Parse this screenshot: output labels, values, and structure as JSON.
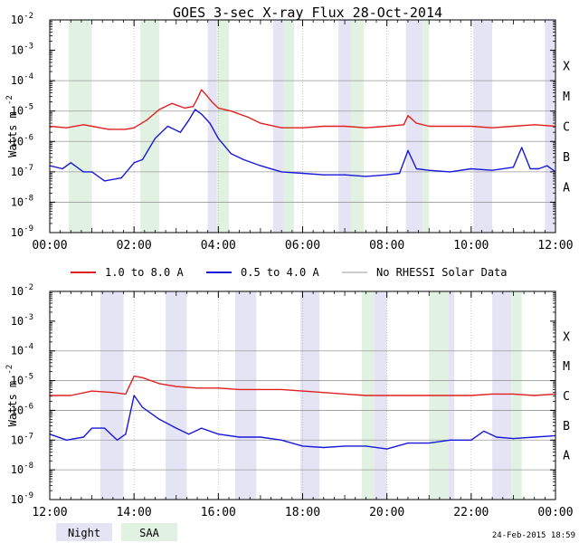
{
  "title": "GOES 3-sec X-ray Flux   28-Oct-2014",
  "ylabel_main": "Watts m",
  "ylabel_exp": "-2",
  "footer_date": "24-Feb-2015 18:59",
  "legend": [
    {
      "label": "1.0 to 8.0 A",
      "color": "#e02020"
    },
    {
      "label": "0.5 to 4.0 A",
      "color": "#1818d8"
    },
    {
      "label": "No RHESSI Solar Data",
      "color": "#999999"
    }
  ],
  "shade_legend": [
    {
      "label": "Night",
      "color": "#e4e4f4"
    },
    {
      "label": "SAA",
      "color": "#e2f2e2"
    }
  ],
  "colors": {
    "long": "#e02020",
    "short": "#1818d8",
    "nodata": "#999999",
    "grid": "#9a9a9a"
  },
  "chart_data": [
    {
      "type": "line",
      "panel": "top",
      "ylabel": "Watts m^-2",
      "yscale": "log",
      "ylim_exp": [
        -9,
        -2
      ],
      "ytick_exps": [
        "-2",
        "-3",
        "-4",
        "-5",
        "-6",
        "-7",
        "-8",
        "-9"
      ],
      "classes": [
        "X",
        "M",
        "C",
        "B",
        "A"
      ],
      "class_exps": [
        -4,
        -5,
        -6,
        -7,
        -8
      ],
      "xlim_hours": [
        0,
        12
      ],
      "xtick_labels": [
        "00:00",
        "02:00",
        "04:00",
        "06:00",
        "08:00",
        "10:00",
        "12:00"
      ],
      "night": [
        [
          3.75,
          3.95
        ],
        [
          5.3,
          5.55
        ],
        [
          6.85,
          7.15
        ],
        [
          8.45,
          8.85
        ],
        [
          10.05,
          10.5
        ],
        [
          11.75,
          12.0
        ]
      ],
      "saa": [
        [
          0.45,
          1.0
        ],
        [
          2.15,
          2.6
        ],
        [
          3.95,
          4.25
        ],
        [
          5.55,
          5.8
        ],
        [
          7.15,
          7.45
        ],
        [
          8.85,
          9.0
        ]
      ],
      "series": [
        {
          "name": "1.0 to 8.0 A",
          "hours": [
            0,
            0.4,
            0.8,
            1.0,
            1.4,
            1.8,
            2.0,
            2.3,
            2.6,
            2.9,
            3.2,
            3.4,
            3.5,
            3.6,
            3.7,
            3.85,
            4.0,
            4.3,
            4.7,
            5.0,
            5.5,
            6.0,
            6.5,
            7.0,
            7.5,
            8.0,
            8.4,
            8.5,
            8.7,
            9.0,
            9.5,
            10.0,
            10.5,
            11.0,
            11.5,
            12.0
          ],
          "log_values": [
            -5.5,
            -5.55,
            -5.45,
            -5.5,
            -5.6,
            -5.6,
            -5.55,
            -5.3,
            -4.95,
            -4.75,
            -4.9,
            -4.85,
            -4.6,
            -4.3,
            -4.45,
            -4.7,
            -4.9,
            -5.0,
            -5.2,
            -5.4,
            -5.55,
            -5.55,
            -5.5,
            -5.5,
            -5.55,
            -5.5,
            -5.45,
            -5.15,
            -5.4,
            -5.5,
            -5.5,
            -5.5,
            -5.55,
            -5.5,
            -5.45,
            -5.5
          ]
        },
        {
          "name": "0.5 to 4.0 A",
          "hours": [
            0,
            0.3,
            0.5,
            0.8,
            1.0,
            1.3,
            1.7,
            2.0,
            2.2,
            2.5,
            2.8,
            3.1,
            3.3,
            3.45,
            3.6,
            3.8,
            4.0,
            4.3,
            4.6,
            5.0,
            5.5,
            6.0,
            6.5,
            7.0,
            7.5,
            8.0,
            8.3,
            8.5,
            8.7,
            9.0,
            9.5,
            10.0,
            10.5,
            11.0,
            11.2,
            11.4,
            11.6,
            11.8,
            12.0
          ],
          "log_values": [
            -6.8,
            -6.9,
            -6.7,
            -7.0,
            -7.0,
            -7.3,
            -7.2,
            -6.7,
            -6.6,
            -5.9,
            -5.5,
            -5.7,
            -5.3,
            -4.95,
            -5.1,
            -5.4,
            -5.9,
            -6.4,
            -6.6,
            -6.8,
            -7.0,
            -7.05,
            -7.1,
            -7.1,
            -7.15,
            -7.1,
            -7.05,
            -6.3,
            -6.9,
            -6.95,
            -7.0,
            -6.9,
            -6.95,
            -6.85,
            -6.2,
            -6.9,
            -6.9,
            -6.8,
            -7.0
          ]
        }
      ]
    },
    {
      "type": "line",
      "panel": "bottom",
      "ylabel": "Watts m^-2",
      "yscale": "log",
      "ylim_exp": [
        -9,
        -2
      ],
      "ytick_exps": [
        "-2",
        "-3",
        "-4",
        "-5",
        "-6",
        "-7",
        "-8",
        "-9"
      ],
      "classes": [
        "X",
        "M",
        "C",
        "B",
        "A"
      ],
      "class_exps": [
        -4,
        -5,
        -6,
        -7,
        -8
      ],
      "xlim_hours": [
        12,
        24
      ],
      "xtick_labels": [
        "12:00",
        "14:00",
        "16:00",
        "18:00",
        "20:00",
        "22:00",
        "00:00"
      ],
      "night": [
        [
          13.2,
          13.75
        ],
        [
          14.75,
          15.25
        ],
        [
          16.4,
          16.9
        ],
        [
          17.95,
          18.4
        ],
        [
          19.7,
          20.0
        ],
        [
          21.45,
          21.6
        ],
        [
          22.5,
          22.95
        ]
      ],
      "saa": [
        [
          19.4,
          19.7
        ],
        [
          21.0,
          21.45
        ],
        [
          22.95,
          23.2
        ]
      ],
      "series": [
        {
          "name": "1.0 to 8.0 A",
          "hours": [
            12,
            12.5,
            13.0,
            13.5,
            13.8,
            14.0,
            14.2,
            14.6,
            15.0,
            15.5,
            16.0,
            16.5,
            17.0,
            17.5,
            18.0,
            18.5,
            19.0,
            19.5,
            20.0,
            20.5,
            21.0,
            21.5,
            22.0,
            22.5,
            23.0,
            23.5,
            24.0
          ],
          "log_values": [
            -5.5,
            -5.5,
            -5.35,
            -5.4,
            -5.45,
            -4.85,
            -4.9,
            -5.1,
            -5.2,
            -5.25,
            -5.25,
            -5.3,
            -5.3,
            -5.3,
            -5.35,
            -5.4,
            -5.45,
            -5.5,
            -5.5,
            -5.5,
            -5.5,
            -5.5,
            -5.5,
            -5.45,
            -5.45,
            -5.5,
            -5.45
          ]
        },
        {
          "name": "0.5 to 4.0 A",
          "hours": [
            12,
            12.4,
            12.8,
            13.0,
            13.3,
            13.6,
            13.8,
            14.0,
            14.2,
            14.6,
            15.0,
            15.3,
            15.6,
            16.0,
            16.5,
            17.0,
            17.5,
            18.0,
            18.5,
            19.0,
            19.5,
            20.0,
            20.5,
            21.0,
            21.5,
            22.0,
            22.3,
            22.6,
            23.0,
            23.5,
            24.0
          ],
          "log_values": [
            -6.8,
            -7.0,
            -6.9,
            -6.6,
            -6.6,
            -7.0,
            -6.8,
            -5.5,
            -5.9,
            -6.3,
            -6.6,
            -6.8,
            -6.6,
            -6.8,
            -6.9,
            -6.9,
            -7.0,
            -7.2,
            -7.25,
            -7.2,
            -7.2,
            -7.3,
            -7.1,
            -7.1,
            -7.0,
            -7.0,
            -6.7,
            -6.9,
            -6.95,
            -6.9,
            -6.85
          ]
        }
      ]
    }
  ]
}
